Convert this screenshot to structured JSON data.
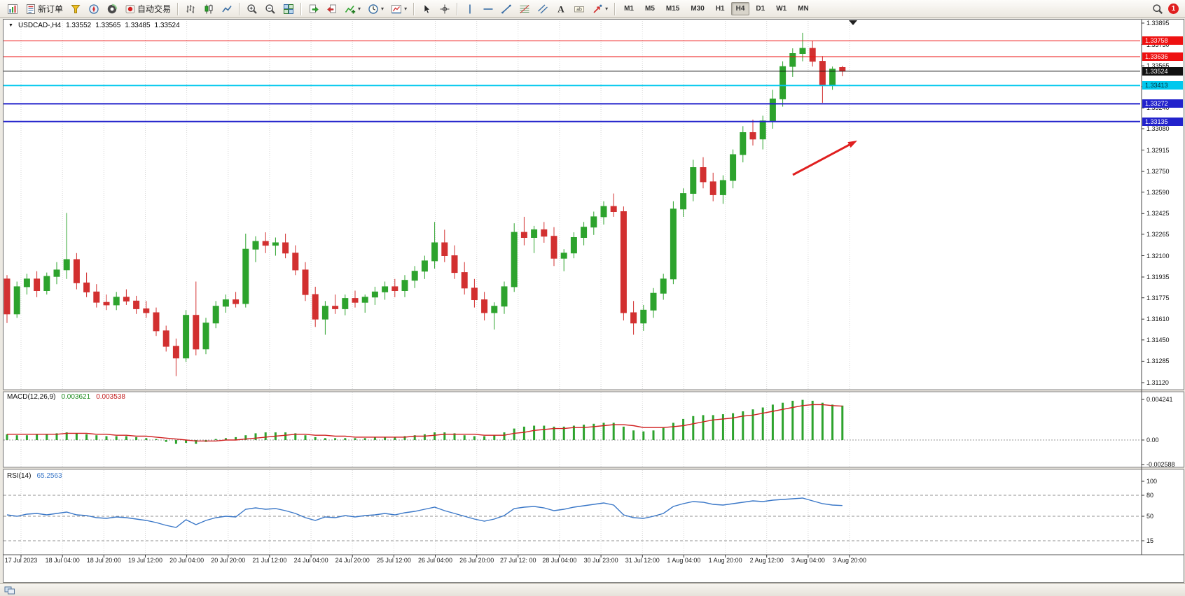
{
  "window": {
    "title": "USDCAD-,H4"
  },
  "toolbar": {
    "groups": [
      {
        "items": [
          {
            "name": "new-chart-button",
            "icon": "chart-new"
          },
          {
            "name": "new-order-button",
            "icon": "new-order",
            "label": "新订单"
          },
          {
            "name": "market-watch-button",
            "icon": "market-watch"
          },
          {
            "name": "navigator-button",
            "icon": "navigator"
          },
          {
            "name": "data-window-button",
            "icon": "data-window"
          },
          {
            "name": "autotrading-button",
            "icon": "autotrading",
            "label": "自动交易"
          }
        ]
      },
      {
        "items": [
          {
            "name": "bar-chart-button",
            "icon": "bars"
          },
          {
            "name": "candlestick-chart-button",
            "icon": "candles"
          },
          {
            "name": "line-chart-button",
            "icon": "line"
          }
        ]
      },
      {
        "items": [
          {
            "name": "zoom-in-button",
            "icon": "zoom-in"
          },
          {
            "name": "zoom-out-button",
            "icon": "zoom-out"
          },
          {
            "name": "tile-windows-button",
            "icon": "tile"
          }
        ]
      },
      {
        "items": [
          {
            "name": "auto-scroll-button",
            "icon": "auto-scroll"
          },
          {
            "name": "chart-shift-button",
            "icon": "chart-shift"
          },
          {
            "name": "indicators-button",
            "icon": "indicators",
            "dropdown": true
          },
          {
            "name": "periods-button",
            "icon": "clock",
            "dropdown": true
          },
          {
            "name": "templates-button",
            "icon": "template",
            "dropdown": true
          }
        ]
      },
      {
        "items": [
          {
            "name": "cursor-button",
            "icon": "cursor"
          },
          {
            "name": "crosshair-button",
            "icon": "crosshair"
          }
        ]
      },
      {
        "items": [
          {
            "name": "vertical-line-button",
            "icon": "vline"
          },
          {
            "name": "horizontal-line-button",
            "icon": "hline"
          },
          {
            "name": "trendline-button",
            "icon": "trendline"
          },
          {
            "name": "fibonacci-button",
            "icon": "fibo"
          },
          {
            "name": "channel-button",
            "icon": "channel"
          },
          {
            "name": "text-button",
            "icon": "textA"
          },
          {
            "name": "text-label-button",
            "icon": "label"
          },
          {
            "name": "arrows-button",
            "icon": "arrows",
            "dropdown": true
          }
        ]
      }
    ],
    "timeframes": [
      {
        "label": "M1"
      },
      {
        "label": "M5"
      },
      {
        "label": "M15"
      },
      {
        "label": "M30"
      },
      {
        "label": "H1"
      },
      {
        "label": "H4",
        "active": true
      },
      {
        "label": "D1"
      },
      {
        "label": "W1"
      },
      {
        "label": "MN"
      }
    ],
    "notification_badge": "1"
  },
  "chart": {
    "header": {
      "symbol_period": "USDCAD-,H4",
      "open": "1.33552",
      "high": "1.33565",
      "low": "1.33485",
      "close": "1.33524"
    }
  },
  "chart_data": {
    "type": "candlestick",
    "symbol": "USDCAD",
    "period": "H4",
    "colors": {
      "up": "#2da32d",
      "down": "#d23030",
      "arrow": "#e01f1f"
    },
    "current": {
      "open": 1.33552,
      "high": 1.33565,
      "low": 1.33485,
      "close": 1.33524
    },
    "price_axis": {
      "max": 1.33895,
      "min": 1.3112,
      "ticks": [
        "1.33895",
        "1.33730",
        "1.33565",
        "1.33405",
        "1.33240",
        "1.33080",
        "1.32915",
        "1.32750",
        "1.32590",
        "1.32425",
        "1.32265",
        "1.32100",
        "1.31935",
        "1.31775",
        "1.31610",
        "1.31450",
        "1.31285",
        "1.31120"
      ]
    },
    "levels": [
      {
        "value": "1.33758",
        "price": 1.33758,
        "color": "#ee1111",
        "badge_bg": "#ee1111",
        "badge_fg": "#ffffff",
        "width": 1,
        "type": "resistance"
      },
      {
        "value": "1.33636",
        "price": 1.33636,
        "color": "#ee1111",
        "badge_bg": "#ee1111",
        "badge_fg": "#ffffff",
        "width": 1,
        "type": "resistance"
      },
      {
        "value": "1.33524",
        "price": 1.33524,
        "color": "#111111",
        "badge_bg": "#111111",
        "badge_fg": "#ffffff",
        "width": 1,
        "type": "current-price"
      },
      {
        "value": "1.33413",
        "price": 1.33413,
        "color": "#00c8ee",
        "badge_bg": "#00c8ee",
        "badge_fg": "#002b38",
        "width": 2,
        "type": "support"
      },
      {
        "value": "1.33272",
        "price": 1.33272,
        "color": "#2222cc",
        "badge_bg": "#2222cc",
        "badge_fg": "#ffffff",
        "width": 2,
        "type": "support"
      },
      {
        "value": "1.33135",
        "price": 1.33135,
        "color": "#2222cc",
        "badge_bg": "#2222cc",
        "badge_fg": "#ffffff",
        "width": 2,
        "type": "support"
      }
    ],
    "time_labels": [
      "17 Jul 2023",
      "18 Jul 04:00",
      "18 Jul 20:00",
      "19 Jul 12:00",
      "20 Jul 04:00",
      "20 Jul 20:00",
      "21 Jul 12:00",
      "24 Jul 04:00",
      "24 Jul 20:00",
      "25 Jul 12:00",
      "26 Jul 04:00",
      "26 Jul 20:00",
      "27 Jul 12: 00",
      "28 Jul 04:00",
      "30 Jul 23:00",
      "31 Jul 12:00",
      "1 Aug 04:00",
      "1 Aug 20:00",
      "2 Aug 12:00",
      "3 Aug 04:00",
      "3 Aug 20:00"
    ],
    "candles": [
      [
        1.3192,
        1.3195,
        1.3158,
        1.3165
      ],
      [
        1.3165,
        1.319,
        1.3162,
        1.3186
      ],
      [
        1.3186,
        1.3196,
        1.318,
        1.3192
      ],
      [
        1.3192,
        1.3198,
        1.3178,
        1.3183
      ],
      [
        1.3183,
        1.3197,
        1.318,
        1.3194
      ],
      [
        1.3194,
        1.3205,
        1.3188,
        1.3199
      ],
      [
        1.3199,
        1.3243,
        1.3192,
        1.3207
      ],
      [
        1.3207,
        1.3212,
        1.3184,
        1.3189
      ],
      [
        1.3189,
        1.3197,
        1.3178,
        1.3182
      ],
      [
        1.3182,
        1.3188,
        1.317,
        1.3174
      ],
      [
        1.3174,
        1.318,
        1.3168,
        1.3172
      ],
      [
        1.3172,
        1.3182,
        1.3168,
        1.3178
      ],
      [
        1.3178,
        1.3184,
        1.3172,
        1.3175
      ],
      [
        1.3175,
        1.3179,
        1.3165,
        1.3169
      ],
      [
        1.3169,
        1.3175,
        1.3162,
        1.3166
      ],
      [
        1.3166,
        1.317,
        1.3148,
        1.3152
      ],
      [
        1.3152,
        1.3156,
        1.3136,
        1.314
      ],
      [
        1.314,
        1.3146,
        1.3117,
        1.3131
      ],
      [
        1.3131,
        1.3168,
        1.3128,
        1.3164
      ],
      [
        1.3164,
        1.319,
        1.3133,
        1.3138
      ],
      [
        1.3138,
        1.3162,
        1.3134,
        1.3158
      ],
      [
        1.3158,
        1.3175,
        1.3154,
        1.3171
      ],
      [
        1.3171,
        1.318,
        1.3166,
        1.3176
      ],
      [
        1.3176,
        1.3182,
        1.317,
        1.3173
      ],
      [
        1.3173,
        1.3227,
        1.317,
        1.3215
      ],
      [
        1.3215,
        1.3225,
        1.3205,
        1.3221
      ],
      [
        1.3221,
        1.3228,
        1.3212,
        1.3218
      ],
      [
        1.3218,
        1.3224,
        1.321,
        1.322
      ],
      [
        1.322,
        1.3227,
        1.3208,
        1.3212
      ],
      [
        1.3212,
        1.3218,
        1.3195,
        1.3199
      ],
      [
        1.3199,
        1.3205,
        1.3175,
        1.318
      ],
      [
        1.318,
        1.3186,
        1.3155,
        1.3161
      ],
      [
        1.3161,
        1.3175,
        1.3149,
        1.3171
      ],
      [
        1.3171,
        1.318,
        1.3165,
        1.3169
      ],
      [
        1.3169,
        1.318,
        1.3164,
        1.3177
      ],
      [
        1.3177,
        1.3183,
        1.317,
        1.3174
      ],
      [
        1.3174,
        1.318,
        1.3166,
        1.3178
      ],
      [
        1.3178,
        1.3186,
        1.3172,
        1.3182
      ],
      [
        1.3182,
        1.319,
        1.3176,
        1.3186
      ],
      [
        1.3186,
        1.3192,
        1.3178,
        1.3183
      ],
      [
        1.3183,
        1.3195,
        1.3178,
        1.3191
      ],
      [
        1.3191,
        1.3202,
        1.3185,
        1.3198
      ],
      [
        1.3198,
        1.321,
        1.3192,
        1.3206
      ],
      [
        1.3206,
        1.3236,
        1.32,
        1.322
      ],
      [
        1.322,
        1.323,
        1.3205,
        1.321
      ],
      [
        1.321,
        1.3218,
        1.3192,
        1.3197
      ],
      [
        1.3197,
        1.3205,
        1.318,
        1.3185
      ],
      [
        1.3185,
        1.3192,
        1.317,
        1.3176
      ],
      [
        1.3176,
        1.3182,
        1.316,
        1.3166
      ],
      [
        1.3166,
        1.3174,
        1.3153,
        1.3171
      ],
      [
        1.3171,
        1.319,
        1.3165,
        1.3186
      ],
      [
        1.3186,
        1.3235,
        1.3182,
        1.3228
      ],
      [
        1.3228,
        1.324,
        1.3218,
        1.3224
      ],
      [
        1.3224,
        1.3233,
        1.3212,
        1.323
      ],
      [
        1.323,
        1.3236,
        1.322,
        1.3225
      ],
      [
        1.3225,
        1.3232,
        1.3202,
        1.3208
      ],
      [
        1.3208,
        1.3215,
        1.3198,
        1.3212
      ],
      [
        1.3212,
        1.3228,
        1.3208,
        1.3224
      ],
      [
        1.3224,
        1.3236,
        1.3218,
        1.3232
      ],
      [
        1.3232,
        1.3244,
        1.3226,
        1.324
      ],
      [
        1.324,
        1.3252,
        1.3234,
        1.3248
      ],
      [
        1.3248,
        1.3258,
        1.324,
        1.3244
      ],
      [
        1.3244,
        1.3248,
        1.316,
        1.3166
      ],
      [
        1.3166,
        1.3175,
        1.3149,
        1.3158
      ],
      [
        1.3158,
        1.3172,
        1.3152,
        1.3168
      ],
      [
        1.3168,
        1.3185,
        1.3162,
        1.3181
      ],
      [
        1.3181,
        1.3196,
        1.3176,
        1.3192
      ],
      [
        1.3192,
        1.3252,
        1.3188,
        1.3246
      ],
      [
        1.3246,
        1.3262,
        1.324,
        1.3258
      ],
      [
        1.3258,
        1.3284,
        1.3252,
        1.3278
      ],
      [
        1.3278,
        1.3286,
        1.3262,
        1.3267
      ],
      [
        1.3267,
        1.3274,
        1.3252,
        1.3257
      ],
      [
        1.3257,
        1.3272,
        1.325,
        1.3268
      ],
      [
        1.3268,
        1.3292,
        1.3262,
        1.3288
      ],
      [
        1.3288,
        1.331,
        1.3282,
        1.3305
      ],
      [
        1.3305,
        1.3315,
        1.3295,
        1.33
      ],
      [
        1.33,
        1.3318,
        1.3292,
        1.3314
      ],
      [
        1.3314,
        1.3338,
        1.3308,
        1.3331
      ],
      [
        1.3331,
        1.336,
        1.3325,
        1.3356
      ],
      [
        1.3356,
        1.337,
        1.3348,
        1.3366
      ],
      [
        1.3366,
        1.3382,
        1.336,
        1.337
      ],
      [
        1.337,
        1.3376,
        1.3356,
        1.336
      ],
      [
        1.336,
        1.3364,
        1.3328,
        1.3342
      ],
      [
        1.3342,
        1.3356,
        1.3338,
        1.3354
      ],
      [
        1.33552,
        1.33565,
        1.33485,
        1.33524
      ]
    ],
    "macd": {
      "label": "MACD(12,26,9)",
      "value_text": "0.003621",
      "signal_text": "0.003538",
      "value": 0.003621,
      "signal_value": 0.003538,
      "max": 0.004241,
      "min": -0.002588,
      "axis": [
        {
          "text": "0.004241",
          "value": 0.004241
        },
        {
          "text": "0.00",
          "value": 0
        },
        {
          "text": "-0.002588",
          "value": -0.002588
        }
      ],
      "colors": {
        "histogram": "#2da32d",
        "signal": "#d02020"
      },
      "histogram": [
        0.0006,
        0.0005,
        0.0005,
        0.0006,
        0.0006,
        0.0007,
        0.0008,
        0.0007,
        0.0006,
        0.0005,
        0.0004,
        0.0004,
        0.0004,
        0.0003,
        0.0002,
        0.0001,
        -0.0002,
        -0.0004,
        -0.0003,
        -0.0004,
        -0.0002,
        0.0001,
        0.0002,
        0.0003,
        0.0005,
        0.0007,
        0.0008,
        0.0008,
        0.0008,
        0.0007,
        0.0005,
        0.0003,
        0.0002,
        0.0002,
        0.0002,
        0.0002,
        0.0002,
        0.0003,
        0.0003,
        0.0003,
        0.0004,
        0.0005,
        0.0006,
        0.0008,
        0.0008,
        0.0007,
        0.0005,
        0.0004,
        0.0004,
        0.0005,
        0.0008,
        0.0012,
        0.0014,
        0.0015,
        0.0015,
        0.0014,
        0.0014,
        0.0015,
        0.0016,
        0.0017,
        0.0018,
        0.0018,
        0.0014,
        0.001,
        0.0009,
        0.001,
        0.0013,
        0.0018,
        0.0022,
        0.0025,
        0.0026,
        0.0026,
        0.0027,
        0.0028,
        0.003,
        0.0032,
        0.0034,
        0.0037,
        0.0039,
        0.0041,
        0.0042,
        0.0041,
        0.0039,
        0.0037,
        0.0036
      ],
      "signal": [
        0.0006,
        0.0006,
        0.0006,
        0.0006,
        0.0006,
        0.0006,
        0.0007,
        0.0007,
        0.0007,
        0.0006,
        0.0006,
        0.0005,
        0.0005,
        0.0004,
        0.0004,
        0.0003,
        0.0002,
        0.0001,
        0.0,
        -0.0001,
        -0.0001,
        -0.0001,
        0.0,
        0.0,
        0.0001,
        0.0002,
        0.0003,
        0.0004,
        0.0005,
        0.0006,
        0.0006,
        0.0005,
        0.0005,
        0.0004,
        0.0004,
        0.0003,
        0.0003,
        0.0003,
        0.0003,
        0.0003,
        0.0003,
        0.0004,
        0.0004,
        0.0005,
        0.0006,
        0.0006,
        0.0006,
        0.0006,
        0.0005,
        0.0005,
        0.0005,
        0.0007,
        0.0008,
        0.001,
        0.0011,
        0.0012,
        0.0012,
        0.0013,
        0.0013,
        0.0014,
        0.0015,
        0.0016,
        0.0016,
        0.0015,
        0.0013,
        0.0013,
        0.0013,
        0.0014,
        0.0015,
        0.0017,
        0.0019,
        0.0021,
        0.0022,
        0.0023,
        0.0025,
        0.0026,
        0.0028,
        0.003,
        0.0032,
        0.0034,
        0.0036,
        0.0037,
        0.0037,
        0.0036,
        0.003538
      ]
    },
    "rsi": {
      "label": "RSI(14)",
      "value_text": "65.2563",
      "value": 65.2563,
      "color": "#3b78c8",
      "axis": [
        {
          "text": "100",
          "value": 100
        },
        {
          "text": "80",
          "value": 80
        },
        {
          "text": "50",
          "value": 50
        },
        {
          "text": "15",
          "value": 15
        }
      ],
      "levels": [
        80,
        50,
        15
      ],
      "values": [
        52,
        50,
        53,
        54,
        52,
        54,
        56,
        52,
        51,
        48,
        47,
        49,
        48,
        46,
        44,
        41,
        37,
        34,
        45,
        38,
        44,
        48,
        50,
        49,
        60,
        62,
        60,
        61,
        58,
        54,
        48,
        44,
        49,
        48,
        51,
        49,
        51,
        52,
        54,
        52,
        55,
        57,
        60,
        63,
        58,
        54,
        50,
        46,
        43,
        46,
        51,
        61,
        63,
        64,
        62,
        58,
        60,
        63,
        65,
        67,
        69,
        66,
        52,
        48,
        47,
        50,
        54,
        64,
        68,
        71,
        70,
        67,
        66,
        68,
        70,
        72,
        71,
        73,
        74,
        75,
        76,
        72,
        68,
        66,
        65.2563
      ]
    },
    "annotation_arrow": {
      "from": [
        1132,
        250
      ],
      "to": [
        1224,
        201
      ],
      "color": "#e01f1f"
    }
  },
  "status_bar": {
    "text": ""
  }
}
